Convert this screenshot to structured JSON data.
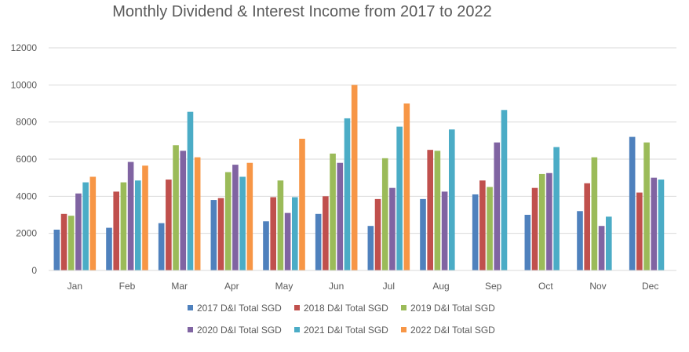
{
  "chart_data": {
    "type": "bar",
    "title": "Monthly Dividend & Interest Income from 2017 to 2022",
    "xlabel": "",
    "ylabel": "",
    "ylim": [
      0,
      12000
    ],
    "yticks": [
      0,
      2000,
      4000,
      6000,
      8000,
      10000,
      12000
    ],
    "grid": true,
    "legend_position": "bottom",
    "categories": [
      "Jan",
      "Feb",
      "Mar",
      "Apr",
      "May",
      "Jun",
      "Jul",
      "Aug",
      "Sep",
      "Oct",
      "Nov",
      "Dec"
    ],
    "series": [
      {
        "name": "2017 D&I Total SGD",
        "color": "#4F81BD",
        "values": [
          2200,
          2300,
          2550,
          3800,
          2650,
          3050,
          2400,
          3850,
          4100,
          3000,
          3200,
          7200
        ]
      },
      {
        "name": "2018 D&I Total SGD",
        "color": "#C0504D",
        "values": [
          3050,
          4250,
          4900,
          3900,
          3950,
          4000,
          3850,
          6500,
          4850,
          4450,
          4700,
          4200
        ]
      },
      {
        "name": "2019 D&I Total SGD",
        "color": "#9BBB59",
        "values": [
          2950,
          4750,
          6750,
          5300,
          4850,
          6300,
          6050,
          6450,
          4500,
          5200,
          6100,
          6900
        ]
      },
      {
        "name": "2020 D&I Total SGD",
        "color": "#8064A2",
        "values": [
          4150,
          5850,
          6450,
          5700,
          3100,
          5800,
          4450,
          4250,
          6900,
          5250,
          2400,
          5000
        ]
      },
      {
        "name": "2021 D&I Total SGD",
        "color": "#4BACC6",
        "values": [
          4750,
          4850,
          8550,
          5050,
          3950,
          8200,
          7750,
          7600,
          8650,
          6650,
          2900,
          4900
        ]
      },
      {
        "name": "2022 D&I Total SGD",
        "color": "#F79646",
        "values": [
          5050,
          5650,
          6100,
          5800,
          7100,
          10000,
          9000,
          null,
          null,
          null,
          null,
          null
        ]
      }
    ]
  }
}
